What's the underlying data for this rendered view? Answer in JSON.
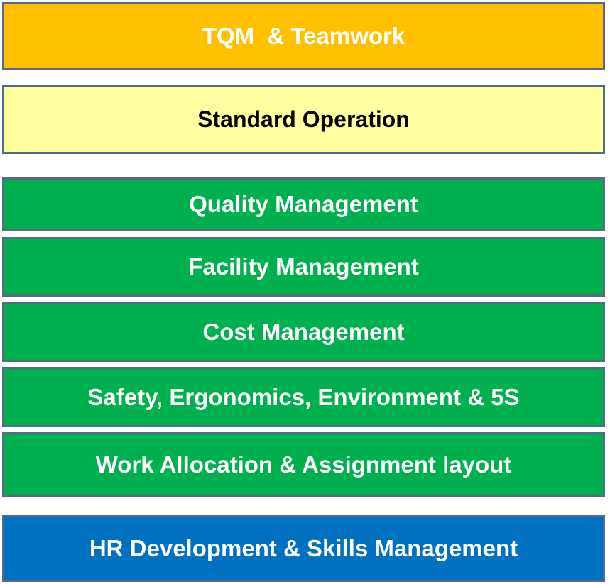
{
  "layers": [
    {
      "label": "TQM  & Teamwork",
      "color": "#ffc000"
    },
    {
      "label": "Standard Operation",
      "color": "#ffff9f"
    },
    {
      "label": "Quality Management",
      "color": "#00b04f"
    },
    {
      "label": "Facility Management",
      "color": "#00b04f"
    },
    {
      "label": "Cost Management",
      "color": "#00b04f"
    },
    {
      "label": "Safety, Ergonomics, Environment & 5S",
      "color": "#00b04f"
    },
    {
      "label": "Work Allocation & Assignment layout",
      "color": "#00b04f"
    },
    {
      "label": "HR Development & Skills Management",
      "color": "#0070c0"
    }
  ]
}
